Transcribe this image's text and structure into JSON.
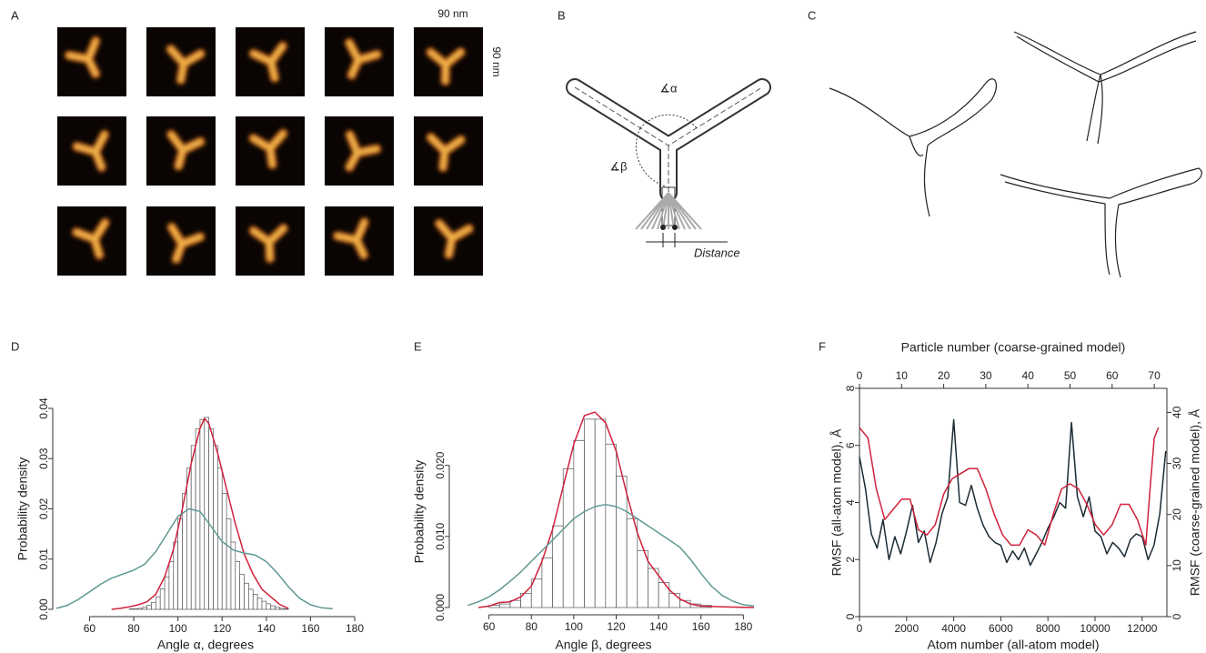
{
  "panels": {
    "A": {
      "label": "A",
      "scale_x": "90 nm",
      "scale_y": "90 nm"
    },
    "B": {
      "label": "B",
      "alpha": "∡α",
      "beta": "∡β",
      "distance": "Distance"
    },
    "C": {
      "label": "C"
    },
    "D": {
      "label": "D"
    },
    "E": {
      "label": "E"
    },
    "F": {
      "label": "F"
    }
  },
  "chart_data": [
    {
      "type": "histogram",
      "x_label": "Angle α, degrees",
      "y_label": "Probability density",
      "bins": [
        76,
        78,
        80,
        82,
        84,
        86,
        88,
        90,
        92,
        94,
        96,
        98,
        100,
        102,
        104,
        106,
        108,
        110,
        112,
        114,
        116,
        118,
        120,
        122,
        124,
        126,
        128,
        130,
        132,
        134,
        136,
        138,
        140,
        142,
        144,
        146,
        148,
        150
      ],
      "values": [
        0.0,
        0.0001,
        0.0001,
        0.0002,
        0.0004,
        0.0008,
        0.0014,
        0.0025,
        0.0041,
        0.0064,
        0.0095,
        0.0134,
        0.018,
        0.0231,
        0.0281,
        0.0326,
        0.0359,
        0.0378,
        0.0382,
        0.0359,
        0.0326,
        0.0281,
        0.0231,
        0.018,
        0.0134,
        0.0095,
        0.007,
        0.0052,
        0.004,
        0.003,
        0.0022,
        0.0016,
        0.0011,
        0.0007,
        0.0004,
        0.0002,
        0.0001
      ],
      "color": "#555555",
      "series": [
        {
          "color": "#d0213b",
          "x": [
            70,
            74,
            78,
            82,
            86,
            90,
            94,
            98,
            102,
            106,
            110,
            112,
            114,
            118,
            122,
            126,
            130,
            134,
            138,
            142,
            146,
            150
          ],
          "values": [
            0,
            0.0002,
            0.0005,
            0.0009,
            0.0015,
            0.003,
            0.0065,
            0.012,
            0.02,
            0.029,
            0.036,
            0.038,
            0.037,
            0.031,
            0.024,
            0.017,
            0.011,
            0.007,
            0.004,
            0.0025,
            0.001,
            0.0002
          ]
        },
        {
          "color": "#5e9993",
          "x": [
            45,
            50,
            55,
            60,
            65,
            70,
            75,
            80,
            85,
            90,
            95,
            100,
            105,
            110,
            115,
            120,
            125,
            130,
            135,
            140,
            145,
            150,
            155,
            160,
            165,
            170
          ],
          "values": [
            0.0002,
            0.0008,
            0.002,
            0.0035,
            0.005,
            0.0062,
            0.007,
            0.0078,
            0.009,
            0.0115,
            0.015,
            0.0185,
            0.02,
            0.0195,
            0.0165,
            0.0135,
            0.0118,
            0.0112,
            0.0108,
            0.0095,
            0.0072,
            0.0045,
            0.0022,
            0.0009,
            0.0003,
            0.0001
          ]
        }
      ],
      "xlim": [
        45,
        180
      ],
      "xticks": [
        60,
        80,
        100,
        120,
        140,
        160,
        180
      ],
      "ylim": [
        0,
        0.04
      ],
      "yticks": [
        {
          "value": 0,
          "label": "0.00"
        },
        0.01,
        0.02,
        0.03,
        0.04
      ]
    },
    {
      "type": "histogram",
      "x_label": "Angle β, degrees",
      "y_label": "Probability density",
      "bins": [
        60,
        65,
        70,
        75,
        80,
        85,
        90,
        95,
        100,
        105,
        110,
        115,
        120,
        125,
        130,
        135,
        140,
        145,
        150,
        155,
        160,
        165
      ],
      "values": [
        0.0003,
        0.0005,
        0.001,
        0.002,
        0.004,
        0.007,
        0.0115,
        0.0195,
        0.0235,
        0.0265,
        0.0265,
        0.023,
        0.0185,
        0.0125,
        0.008,
        0.0055,
        0.0035,
        0.002,
        0.001,
        0.0005,
        0.0003
      ],
      "color": "#555555",
      "series": [
        {
          "color": "#d0213b",
          "x": [
            55,
            60,
            65,
            70,
            75,
            80,
            85,
            90,
            95,
            100,
            105,
            110,
            115,
            120,
            125,
            130,
            135,
            140,
            145,
            150,
            155,
            160,
            170,
            185
          ],
          "values": [
            0,
            0.0002,
            0.0007,
            0.0008,
            0.0015,
            0.003,
            0.0065,
            0.011,
            0.017,
            0.023,
            0.027,
            0.0275,
            0.026,
            0.022,
            0.016,
            0.0105,
            0.0065,
            0.0045,
            0.0025,
            0.0012,
            0.0005,
            0.0002,
            0.0001,
            0
          ]
        },
        {
          "color": "#5e9993",
          "x": [
            50,
            55,
            60,
            65,
            70,
            75,
            80,
            85,
            90,
            95,
            100,
            105,
            110,
            115,
            120,
            125,
            130,
            135,
            140,
            145,
            150,
            155,
            160,
            165,
            170,
            175,
            180,
            185
          ],
          "values": [
            0.0003,
            0.0008,
            0.0015,
            0.0025,
            0.0037,
            0.005,
            0.0065,
            0.008,
            0.0095,
            0.011,
            0.0125,
            0.0135,
            0.0142,
            0.0145,
            0.0142,
            0.0135,
            0.0125,
            0.0115,
            0.0105,
            0.0095,
            0.0085,
            0.0068,
            0.0048,
            0.003,
            0.0017,
            0.0009,
            0.0004,
            0.0002
          ]
        }
      ],
      "xlim": [
        43,
        185
      ],
      "xticks": [
        60,
        80,
        100,
        120,
        140,
        160,
        180
      ],
      "ylim": [
        0,
        0.027
      ],
      "yticks": [
        {
          "value": 0,
          "label": "0.000"
        },
        {
          "value": 0.01,
          "label": "0.010"
        },
        {
          "value": 0.02,
          "label": "0.020"
        }
      ]
    },
    {
      "type": "line",
      "x_label": "Atom number (all-atom model)",
      "x2_label": "Particle number (coarse-grained model)",
      "y_label": "RMSF (all-atom model), Å",
      "y2_label": "RMSF (coarse-grained model), Å",
      "series": [
        {
          "color": "#1b2b33",
          "x": [
            0,
            250,
            500,
            750,
            1000,
            1250,
            1500,
            1750,
            2000,
            2250,
            2500,
            2750,
            3000,
            3250,
            3500,
            3750,
            4000,
            4250,
            4500,
            4750,
            5000,
            5250,
            5500,
            5750,
            6000,
            6250,
            6500,
            6750,
            7000,
            7250,
            7500,
            7750,
            8000,
            8250,
            8500,
            8750,
            9000,
            9250,
            9500,
            9750,
            10000,
            10250,
            10500,
            10750,
            11000,
            11250,
            11500,
            11750,
            12000,
            12250,
            12500,
            12750,
            13000
          ],
          "values": [
            5.6,
            4.5,
            2.9,
            2.4,
            3.4,
            2.0,
            2.8,
            2.2,
            3.0,
            3.9,
            2.6,
            3.0,
            1.9,
            2.6,
            3.6,
            4.2,
            6.9,
            4.0,
            3.9,
            4.6,
            3.8,
            3.2,
            2.8,
            2.6,
            2.5,
            1.9,
            2.3,
            2.0,
            2.4,
            1.8,
            2.2,
            2.6,
            3.1,
            3.5,
            4.0,
            3.8,
            6.8,
            4.2,
            3.5,
            4.2,
            3.0,
            2.8,
            2.2,
            2.6,
            2.4,
            2.1,
            2.7,
            2.9,
            2.8,
            2.0,
            2.5,
            3.6,
            5.8
          ]
        },
        {
          "color": "#d0213b",
          "axis": "y2",
          "xaxis": "x2",
          "x": [
            0,
            2,
            3,
            4,
            6,
            8,
            10,
            12,
            13,
            14,
            16,
            18,
            20,
            22,
            24,
            26,
            28,
            30,
            32,
            34,
            36,
            38,
            40,
            42,
            44,
            46,
            48,
            50,
            52,
            54,
            56,
            58,
            60,
            62,
            64,
            66,
            68,
            69,
            70,
            71
          ],
          "values": [
            37,
            35,
            30,
            25,
            19,
            21,
            23,
            23,
            20,
            17,
            16,
            18,
            24,
            27,
            28,
            29,
            29,
            25,
            20,
            16,
            14,
            14,
            17,
            16,
            14,
            20,
            25,
            26,
            25,
            22,
            18,
            16,
            18,
            22,
            22,
            19,
            14,
            25,
            35,
            37
          ]
        }
      ],
      "xlim": [
        0,
        13050
      ],
      "xticks": [
        0,
        2000,
        4000,
        6000,
        8000,
        10000,
        12000
      ],
      "x2lim": [
        0,
        73
      ],
      "x2ticks": [
        0,
        10,
        20,
        30,
        40,
        50,
        60,
        70
      ],
      "ylim": [
        0,
        8
      ],
      "yticks": [
        0,
        2,
        4,
        6,
        8
      ],
      "y2lim": [
        0,
        44.7
      ],
      "y2ticks": [
        0,
        10,
        20,
        30,
        40
      ]
    }
  ]
}
